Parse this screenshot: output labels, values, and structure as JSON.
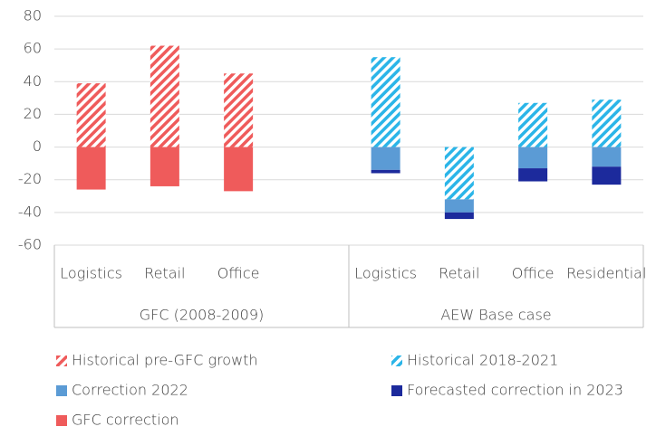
{
  "chart_data": {
    "type": "bar",
    "stacked": true,
    "categories": [
      "Logistics",
      "Retail",
      "Office",
      null,
      "Logistics",
      "Retail",
      "Office",
      "Residential"
    ],
    "groups": [
      "GFC (2008-2009)",
      "AEW Base case"
    ],
    "series": [
      {
        "name": "Historical pre-GFC growth",
        "color": "#ef5b5b",
        "hatch": true,
        "values": [
          39,
          62,
          45,
          null,
          null,
          null,
          null,
          null
        ]
      },
      {
        "name": "Historical 2018-2021",
        "color": "#2bb5e8",
        "hatch": true,
        "values": [
          null,
          null,
          null,
          null,
          55,
          -32,
          27,
          29
        ]
      },
      {
        "name": "Correction 2022",
        "color": "#5b9bd5",
        "hatch": false,
        "values": [
          null,
          null,
          null,
          null,
          -14,
          -8,
          -13,
          -12
        ]
      },
      {
        "name": "Forecasted correction in 2023",
        "color": "#1c2a9c",
        "hatch": false,
        "values": [
          null,
          null,
          null,
          null,
          -2,
          -4,
          -8,
          -11
        ]
      },
      {
        "name": "GFC correction",
        "color": "#ef5b5b",
        "hatch": false,
        "values": [
          -26,
          -24,
          -27,
          null,
          null,
          null,
          null,
          null
        ]
      }
    ],
    "ylim": [
      -60,
      80
    ],
    "yticks": [
      -60,
      -40,
      -20,
      0,
      20,
      40,
      60,
      80
    ],
    "grid": true
  }
}
